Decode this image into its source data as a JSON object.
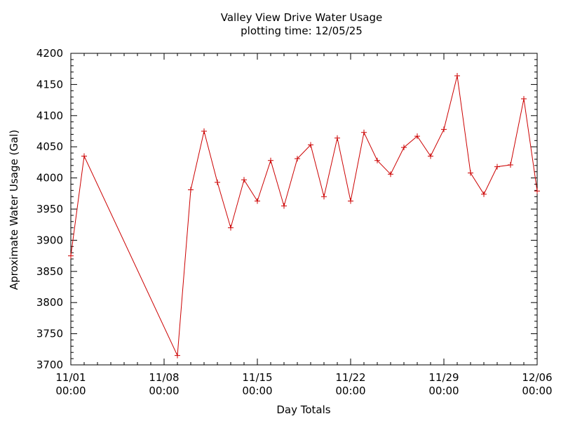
{
  "chart_data": {
    "type": "line",
    "title": "Valley View Drive Water Usage",
    "subtitle": "plotting time: 12/05/25",
    "xlabel": "Day Totals",
    "ylabel": "Aproximate Water Usage (Gal)",
    "xlim": [
      "2025-11-01",
      "2025-12-06"
    ],
    "ylim": [
      3700,
      4200
    ],
    "y_ticks": [
      3700,
      3750,
      3800,
      3850,
      3900,
      3950,
      4000,
      4050,
      4100,
      4150,
      4200
    ],
    "x_ticks": [
      {
        "date": "2025-11-01",
        "label1": "11/01",
        "label2": "00:00"
      },
      {
        "date": "2025-11-08",
        "label1": "11/08",
        "label2": "00:00"
      },
      {
        "date": "2025-11-15",
        "label1": "11/15",
        "label2": "00:00"
      },
      {
        "date": "2025-11-22",
        "label1": "11/22",
        "label2": "00:00"
      },
      {
        "date": "2025-11-29",
        "label1": "11/29",
        "label2": "00:00"
      },
      {
        "date": "2025-12-06",
        "label1": "12/06",
        "label2": "00:00"
      }
    ],
    "grid": false,
    "series_color": "#cc0000",
    "series": [
      {
        "points": [
          {
            "x": "2025-11-01",
            "y": 3875
          },
          {
            "x": "2025-11-02",
            "y": 4035
          },
          {
            "x": "2025-11-09",
            "y": 3715
          },
          {
            "x": "2025-11-10",
            "y": 3981
          },
          {
            "x": "2025-11-11",
            "y": 4075
          },
          {
            "x": "2025-11-12",
            "y": 3993
          },
          {
            "x": "2025-11-13",
            "y": 3920
          },
          {
            "x": "2025-11-14",
            "y": 3997
          },
          {
            "x": "2025-11-15",
            "y": 3963
          },
          {
            "x": "2025-11-16",
            "y": 4028
          },
          {
            "x": "2025-11-17",
            "y": 3955
          },
          {
            "x": "2025-11-18",
            "y": 4031
          },
          {
            "x": "2025-11-19",
            "y": 4053
          },
          {
            "x": "2025-11-20",
            "y": 3970
          },
          {
            "x": "2025-11-21",
            "y": 4064
          },
          {
            "x": "2025-11-22",
            "y": 3963
          },
          {
            "x": "2025-11-23",
            "y": 4073
          },
          {
            "x": "2025-11-24",
            "y": 4028
          },
          {
            "x": "2025-11-25",
            "y": 4006
          },
          {
            "x": "2025-11-26",
            "y": 4049
          },
          {
            "x": "2025-11-27",
            "y": 4067
          },
          {
            "x": "2025-11-28",
            "y": 4035
          },
          {
            "x": "2025-11-29",
            "y": 4078
          },
          {
            "x": "2025-11-30",
            "y": 4164
          },
          {
            "x": "2025-12-01",
            "y": 4008
          },
          {
            "x": "2025-12-02",
            "y": 3974
          },
          {
            "x": "2025-12-03",
            "y": 4018
          },
          {
            "x": "2025-12-04",
            "y": 4021
          },
          {
            "x": "2025-12-05",
            "y": 4127
          },
          {
            "x": "2025-12-06",
            "y": 3979
          }
        ]
      }
    ]
  }
}
